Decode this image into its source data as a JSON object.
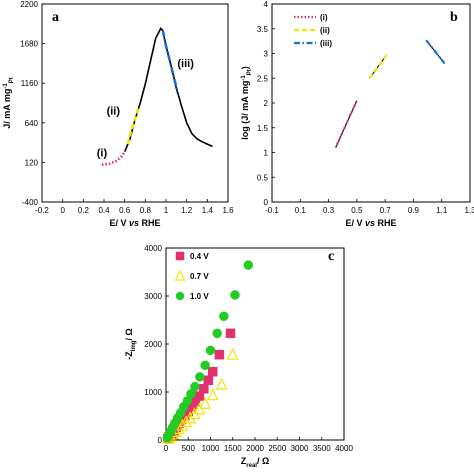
{
  "chart_data": [
    {
      "panel": "a",
      "type": "line",
      "xlabel_parts": [
        "E/ V ",
        "vs",
        " RHE"
      ],
      "ylabel_parts": [
        "J/ mA mg",
        "-1",
        "Pt"
      ],
      "xlim": [
        -0.2,
        1.6
      ],
      "ylim": [
        -400,
        2200
      ],
      "xticks": [
        "-0.2",
        "0",
        "0.2",
        "0.4",
        "0.6",
        "0.8",
        "1",
        "1.2",
        "1.4",
        "1.6"
      ],
      "yticks": [
        "-400",
        "120",
        "640",
        "1160",
        "1680",
        "2200"
      ],
      "curve": [
        [
          0.6,
          260
        ],
        [
          0.65,
          420
        ],
        [
          0.7,
          680
        ],
        [
          0.75,
          900
        ],
        [
          0.8,
          1150
        ],
        [
          0.85,
          1450
        ],
        [
          0.9,
          1750
        ],
        [
          0.95,
          1880
        ],
        [
          0.97,
          1850
        ],
        [
          1.0,
          1650
        ],
        [
          1.05,
          1380
        ],
        [
          1.1,
          1100
        ],
        [
          1.15,
          860
        ],
        [
          1.2,
          640
        ],
        [
          1.25,
          500
        ],
        [
          1.3,
          430
        ],
        [
          1.35,
          390
        ],
        [
          1.4,
          360
        ],
        [
          1.45,
          330
        ]
      ],
      "segments": [
        {
          "name": "(i)",
          "color": "#e0306e",
          "style": "dotted",
          "points": [
            [
              0.38,
              90
            ],
            [
              0.45,
              100
            ],
            [
              0.52,
              140
            ],
            [
              0.57,
              200
            ],
            [
              0.6,
              260
            ]
          ]
        },
        {
          "name": "(ii)",
          "color": "#f2e500",
          "style": "dashed",
          "points": [
            [
              0.63,
              360
            ],
            [
              0.66,
              520
            ],
            [
              0.7,
              680
            ],
            [
              0.73,
              830
            ]
          ]
        },
        {
          "name": "(iii)",
          "color": "#1a6fd6",
          "style": "dashdot",
          "points": [
            [
              0.97,
              1850
            ],
            [
              1.0,
              1650
            ],
            [
              1.04,
              1440
            ],
            [
              1.08,
              1220
            ],
            [
              1.11,
              1040
            ]
          ]
        }
      ],
      "annotations": [
        {
          "text": "(i)",
          "x": 0.38,
          "y": 200
        },
        {
          "text": "(ii)",
          "x": 0.49,
          "y": 750
        },
        {
          "text": "(iii)",
          "x": 1.19,
          "y": 1370
        }
      ]
    },
    {
      "panel": "b",
      "type": "line",
      "xlabel_parts": [
        "E/ V ",
        "vs",
        " RHE"
      ],
      "ylabel_parts": [
        "log (J/ mA mg",
        "-1",
        "Pt",
        ")"
      ],
      "xlim": [
        -0.1,
        1.3
      ],
      "ylim": [
        0,
        4
      ],
      "xticks": [
        "-0.1",
        "0.1",
        "0.3",
        "0.5",
        "0.7",
        "0.9",
        "1.1",
        "1.3"
      ],
      "yticks": [
        "0",
        "0.5",
        "1",
        "1.5",
        "2",
        "2.5",
        "3",
        "3.5",
        "4"
      ],
      "legend_position": "top-left",
      "series": [
        {
          "name": "(i)",
          "color": "#e0306e",
          "style": "dotted",
          "fit": [
            [
              0.35,
              1.1
            ],
            [
              0.5,
              2.05
            ]
          ]
        },
        {
          "name": "(ii)",
          "color": "#f2e500",
          "style": "dashed",
          "fit": [
            [
              0.59,
              2.5
            ],
            [
              0.71,
              2.97
            ]
          ]
        },
        {
          "name": "(iii)",
          "color": "#1a6fd6",
          "style": "dashdot",
          "fit": [
            [
              0.99,
              3.27
            ],
            [
              1.12,
              2.8
            ]
          ]
        }
      ]
    },
    {
      "panel": "c",
      "type": "scatter",
      "xlabel_parts": [
        "Z",
        "real",
        "/ Ω"
      ],
      "ylabel_parts": [
        "-Z",
        "img",
        "/ Ω"
      ],
      "xlim": [
        0,
        4000
      ],
      "ylim": [
        0,
        4500
      ],
      "xticks": [
        "0",
        "500",
        "1000",
        "1500",
        "2000",
        "2500",
        "3000",
        "3500",
        "4000"
      ],
      "yticks": [
        "0",
        "1000",
        "2000",
        "3000",
        "4000"
      ],
      "legend_position": "top-left",
      "series": [
        {
          "name": "0.4 V",
          "color": "#e0306e",
          "marker": "square",
          "x": [
            40,
            80,
            130,
            180,
            230,
            290,
            350,
            420,
            500,
            580,
            660,
            750,
            850,
            950,
            1050,
            1200,
            1450
          ],
          "y": [
            30,
            80,
            140,
            220,
            300,
            390,
            480,
            570,
            670,
            780,
            900,
            1030,
            1200,
            1400,
            1600,
            2000,
            2500
          ]
        },
        {
          "name": "0.7 V",
          "color": "#f2e500",
          "marker": "triangle",
          "x": [
            50,
            100,
            160,
            220,
            290,
            370,
            450,
            540,
            640,
            750,
            880,
            1050,
            1250,
            1500
          ],
          "y": [
            30,
            70,
            130,
            190,
            260,
            340,
            420,
            510,
            610,
            720,
            850,
            1050,
            1300,
            2000
          ]
        },
        {
          "name": "1.0 V",
          "color": "#22cc22",
          "marker": "circle",
          "x": [
            30,
            60,
            100,
            150,
            200,
            260,
            330,
            400,
            480,
            560,
            650,
            760,
            880,
            1000,
            1150,
            1300,
            1550,
            1850
          ],
          "y": [
            50,
            120,
            200,
            300,
            400,
            520,
            640,
            780,
            920,
            1080,
            1250,
            1480,
            1750,
            2100,
            2500,
            2900,
            3400,
            4100
          ]
        }
      ]
    }
  ]
}
